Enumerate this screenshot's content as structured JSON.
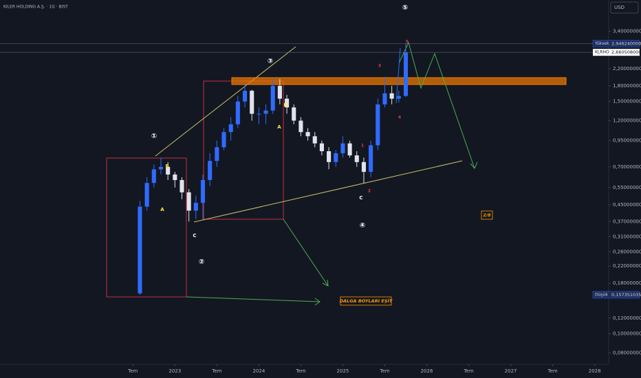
{
  "chart_data": {
    "type": "candlestick",
    "title": "KILER HOLDING A.Ş. · 1G · BIST",
    "currency": "USD",
    "log_scale": true,
    "grid": false,
    "up_color": "#2f6bff",
    "down_color": "#e0e3eb",
    "x": [
      "2022-08",
      "2022-09",
      "2022-10",
      "2022-11",
      "2022-12",
      "2023-01",
      "2023-02",
      "2023-03",
      "2023-04",
      "2023-05",
      "2023-06",
      "2023-07",
      "2023-08",
      "2023-09",
      "2023-10",
      "2023-11",
      "2023-12",
      "2024-01",
      "2024-02",
      "2024-03",
      "2024-04",
      "2024-05",
      "2024-06",
      "2024-07",
      "2024-08",
      "2024-09",
      "2024-10",
      "2024-11",
      "2024-12",
      "2025-01",
      "2025-02",
      "2025-03",
      "2025-04",
      "2025-05",
      "2025-06",
      "2025-07",
      "2025-08",
      "2025-09",
      "2025-10"
    ],
    "open": [
      0.16,
      0.44,
      0.58,
      0.68,
      0.7,
      0.64,
      0.6,
      0.52,
      0.42,
      0.46,
      0.6,
      0.75,
      0.88,
      1.05,
      1.15,
      1.5,
      1.7,
      1.3,
      1.3,
      1.35,
      1.8,
      1.55,
      1.4,
      1.2,
      1.05,
      1.0,
      0.92,
      0.84,
      0.74,
      0.82,
      0.92,
      0.8,
      0.74,
      0.66,
      0.9,
      1.45,
      1.65,
      1.55,
      1.6
    ],
    "high": [
      0.47,
      0.62,
      0.72,
      0.78,
      0.74,
      0.66,
      0.62,
      0.54,
      0.5,
      0.64,
      0.82,
      0.95,
      1.1,
      1.25,
      1.6,
      1.85,
      1.72,
      1.4,
      1.45,
      1.95,
      1.95,
      1.62,
      1.45,
      1.25,
      1.1,
      1.05,
      0.95,
      0.88,
      0.85,
      1.0,
      0.95,
      0.84,
      0.78,
      0.95,
      1.55,
      2.0,
      1.8,
      1.7,
      2.94624
    ],
    "low": [
      0.157351035,
      0.42,
      0.55,
      0.64,
      0.6,
      0.55,
      0.48,
      0.37,
      0.38,
      0.38,
      0.56,
      0.7,
      0.85,
      0.95,
      1.1,
      1.4,
      1.2,
      1.15,
      1.15,
      1.3,
      1.45,
      1.3,
      1.15,
      1.0,
      0.95,
      0.88,
      0.8,
      0.68,
      0.7,
      0.78,
      0.78,
      0.7,
      0.58,
      0.62,
      0.85,
      1.4,
      1.45,
      1.48,
      1.58
    ],
    "close": [
      0.44,
      0.58,
      0.68,
      0.7,
      0.64,
      0.6,
      0.52,
      0.42,
      0.46,
      0.6,
      0.75,
      0.88,
      1.05,
      1.15,
      1.5,
      1.7,
      1.3,
      1.3,
      1.35,
      1.8,
      1.55,
      1.4,
      1.2,
      1.05,
      1.0,
      0.92,
      0.84,
      0.74,
      0.82,
      0.92,
      0.8,
      0.74,
      0.66,
      0.9,
      1.45,
      1.65,
      1.55,
      1.6,
      2.660508
    ],
    "xlim": [
      "2020-12",
      "2028-03"
    ],
    "xticks": [
      {
        "value": "2022-07",
        "label": "Tem"
      },
      {
        "value": "2023-01",
        "label": "2023"
      },
      {
        "value": "2023-07",
        "label": "Tem"
      },
      {
        "value": "2024-01",
        "label": "2024"
      },
      {
        "value": "2024-07",
        "label": "Tem"
      },
      {
        "value": "2025-01",
        "label": "2025"
      },
      {
        "value": "2025-07",
        "label": "Tem"
      },
      {
        "value": "2026-01",
        "label": "2026"
      },
      {
        "value": "2026-07",
        "label": "Tem"
      },
      {
        "value": "2027-01",
        "label": "2027"
      },
      {
        "value": "2027-07",
        "label": "Tem"
      },
      {
        "value": "2028-01",
        "label": "2028"
      }
    ],
    "ylim": [
      0.07,
      4.9
    ],
    "yticks": [
      {
        "value": 3.4,
        "label": "3,400000000"
      },
      {
        "value": 2.2,
        "label": "2,200000000"
      },
      {
        "value": 1.8,
        "label": "1,800000000"
      },
      {
        "value": 1.5,
        "label": "1,500000000"
      },
      {
        "value": 1.2,
        "label": "1,200000000"
      },
      {
        "value": 0.95,
        "label": "0,950000000"
      },
      {
        "value": 0.7,
        "label": "0,700000000"
      },
      {
        "value": 0.55,
        "label": "0,550000000"
      },
      {
        "value": 0.45,
        "label": "0,450000000"
      },
      {
        "value": 0.37,
        "label": "0,370000000"
      },
      {
        "value": 0.31,
        "label": "0,310000000"
      },
      {
        "value": 0.26,
        "label": "0,260000000"
      },
      {
        "value": 0.22,
        "label": "0,220000000"
      },
      {
        "value": 0.18,
        "label": "0,180000000"
      },
      {
        "value": 0.12,
        "label": "0,120000000"
      },
      {
        "value": 0.1,
        "label": "0,100000000"
      },
      {
        "value": 0.08,
        "label": "0,080000000"
      }
    ],
    "price_lines": [
      {
        "name": "Yüksek",
        "value": 2.94624,
        "label": "2,946240000",
        "color": "#1e2d5a"
      },
      {
        "name": "KLRHO",
        "value": 2.660508,
        "label": "2,660508000",
        "color": "#ffffff"
      },
      {
        "name": "Düşük",
        "value": 0.157351035,
        "label": "0,157351035",
        "color": "#1e2d5a"
      }
    ],
    "annotations": [
      "①",
      "②",
      "③",
      "④",
      "⑤",
      "A",
      "B",
      "C",
      "A",
      "B",
      "C",
      "1",
      "2",
      "3",
      "4",
      "5",
      "2/8",
      "DALGA BOYLARI EŞİT"
    ]
  }
}
